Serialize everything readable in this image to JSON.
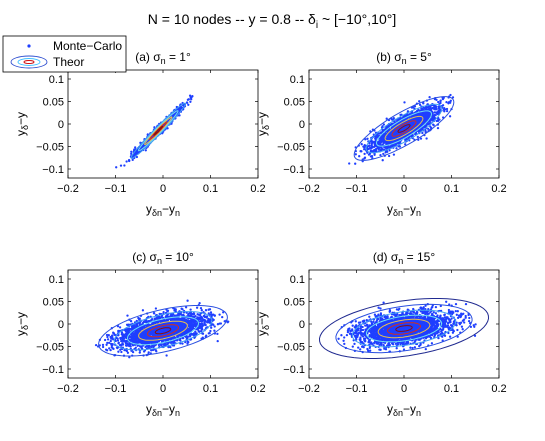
{
  "figure": {
    "title_parts": [
      "N = 10 nodes -- y = 0.8 -- δ",
      "i",
      " ~ [−10°,10°]"
    ]
  },
  "legend": {
    "location": "top-left",
    "entries": [
      {
        "label": "Monte−Carlo",
        "marker": "dot",
        "color": "#1f3fff"
      },
      {
        "label": "Theor",
        "marker": "ellipse",
        "colors": [
          "#3050d0",
          "#40c0ff",
          "#d01010"
        ]
      }
    ]
  },
  "colors": {
    "points": "#1f3fff",
    "contours": [
      "#202a90",
      "#2a4fe0",
      "#40a0f0",
      "#70e0f0",
      "#e8c050",
      "#d03020",
      "#8a1010"
    ]
  },
  "chart_data": [
    {
      "type": "scatter",
      "panel_label": "(a) σn = 1°",
      "title_parts": [
        "(a) σ",
        "n",
        " = 1°"
      ],
      "xlabel_parts": [
        "y",
        "δn",
        "−y",
        "n"
      ],
      "ylabel_parts": [
        "y",
        "δ",
        "−y"
      ],
      "xlim": [
        -0.2,
        0.2
      ],
      "ylim": [
        -0.12,
        0.12
      ],
      "xticks": [
        -0.2,
        -0.1,
        0,
        0.1,
        0.2
      ],
      "yticks": [
        -0.1,
        -0.05,
        0,
        0.05,
        0.1
      ],
      "xtick_labels": [
        "−0.2",
        "−0.1",
        "0",
        "0.1",
        "0.2"
      ],
      "ytick_labels": [
        "−0.1",
        "−0.05",
        "0",
        "0.05",
        "0.1"
      ],
      "cloud": {
        "mean": [
          -0.01,
          -0.015
        ],
        "sd_major": 0.038,
        "sd_minor": 0.0035,
        "angle_deg": 47,
        "count": 1100,
        "x_range": [
          -0.1,
          0.07
        ],
        "y_range": [
          -0.098,
          0.068
        ]
      },
      "contour_levels": [
        0.35,
        0.7,
        1.1,
        1.6,
        2.2
      ]
    },
    {
      "type": "scatter",
      "panel_label": "(b) σn = 5°",
      "title_parts": [
        "(b) σ",
        "n",
        " = 5°"
      ],
      "xlabel_parts": [
        "y",
        "δn",
        "−y",
        "n"
      ],
      "ylabel_parts": [
        "y",
        "δ",
        "−y"
      ],
      "xlim": [
        -0.2,
        0.2
      ],
      "ylim": [
        -0.12,
        0.12
      ],
      "xticks": [
        -0.2,
        -0.1,
        0,
        0.1,
        0.2
      ],
      "yticks": [
        -0.1,
        -0.05,
        0,
        0.05,
        0.1
      ],
      "xtick_labels": [
        "−0.2",
        "−0.1",
        "0",
        "0.1",
        "0.2"
      ],
      "ytick_labels": [
        "−0.1",
        "−0.05",
        "0",
        "0.05",
        "0.1"
      ],
      "cloud": {
        "mean": [
          0.0,
          -0.01
        ],
        "sd_major": 0.042,
        "sd_minor": 0.012,
        "angle_deg": 32,
        "count": 1900,
        "x_range": [
          -0.12,
          0.12
        ],
        "y_range": [
          -0.1,
          0.065
        ]
      },
      "contour_levels": [
        0.35,
        0.7,
        1.1,
        1.6,
        2.2,
        2.9
      ]
    },
    {
      "type": "scatter",
      "panel_label": "(c) σn = 10°",
      "title_parts": [
        "(c) σ",
        "n",
        " = 10°"
      ],
      "xlabel_parts": [
        "y",
        "δn",
        "−y",
        "n"
      ],
      "ylabel_parts": [
        "y",
        "δ",
        "−y"
      ],
      "xlim": [
        -0.2,
        0.2
      ],
      "ylim": [
        -0.12,
        0.12
      ],
      "xticks": [
        -0.2,
        -0.1,
        0,
        0.1,
        0.2
      ],
      "yticks": [
        -0.1,
        -0.05,
        0,
        0.05,
        0.1
      ],
      "xtick_labels": [
        "−0.2",
        "−0.1",
        "0",
        "0.1",
        "0.2"
      ],
      "ytick_labels": [
        "−0.1",
        "−0.05",
        "0",
        "0.05",
        "0.1"
      ],
      "cloud": {
        "mean": [
          0.0,
          -0.015
        ],
        "sd_major": 0.048,
        "sd_minor": 0.016,
        "angle_deg": 14,
        "count": 2400,
        "x_range": [
          -0.17,
          0.15
        ],
        "y_range": [
          -0.075,
          0.06
        ]
      },
      "contour_levels": [
        0.35,
        0.7,
        1.1,
        1.6,
        2.2,
        2.9
      ]
    },
    {
      "type": "scatter",
      "panel_label": "(d) σn = 15°",
      "title_parts": [
        "(d) σ",
        "n",
        " = 15°"
      ],
      "xlabel_parts": [
        "y",
        "δn",
        "−y",
        "n"
      ],
      "ylabel_parts": [
        "y",
        "δ",
        "−y"
      ],
      "xlim": [
        -0.2,
        0.2
      ],
      "ylim": [
        -0.12,
        0.12
      ],
      "xticks": [
        -0.2,
        -0.1,
        0,
        0.1,
        0.2
      ],
      "yticks": [
        -0.1,
        -0.05,
        0,
        0.05,
        0.1
      ],
      "xtick_labels": [
        "−0.2",
        "−0.1",
        "0",
        "0.1",
        "0.2"
      ],
      "ytick_labels": [
        "−0.1",
        "−0.05",
        "0",
        "0.05",
        "0.1"
      ],
      "cloud": {
        "mean": [
          0.0,
          -0.01
        ],
        "sd_major": 0.05,
        "sd_minor": 0.017,
        "angle_deg": 9,
        "count": 2400,
        "x_range": [
          -0.15,
          0.16
        ],
        "y_range": [
          -0.065,
          0.05
        ]
      },
      "contour_levels": [
        0.35,
        0.7,
        1.1,
        1.6,
        2.2,
        2.9,
        3.6
      ]
    }
  ]
}
